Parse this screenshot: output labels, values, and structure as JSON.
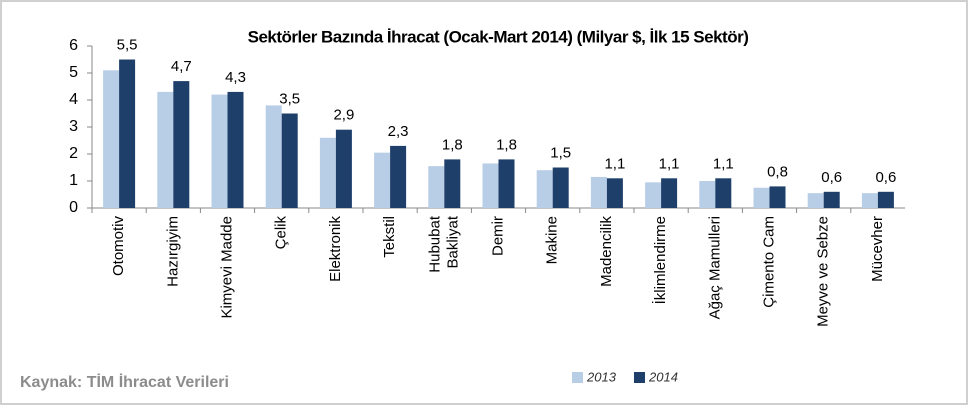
{
  "chart_data": {
    "type": "bar",
    "title": "Sektörler Bazında İhracat (Ocak-Mart 2014) (Milyar $, İlk 15 Sektör)",
    "source": "Kaynak: TİM İhracat Verileri",
    "categories": [
      "Otomotiv",
      "Hazırgiyim",
      "Kimyevi Madde",
      "Çelik",
      "Elektronik",
      "Tekstil",
      "Hububat\nBakliyat",
      "Demir",
      "Makine",
      "Madencilik",
      "İklimlendirme",
      "Ağaç Mamulleri",
      "Çimento Cam",
      "Meyve ve Sebze",
      "Mücevher"
    ],
    "series": [
      {
        "name": "2013",
        "color": "#b8cde6",
        "values": [
          5.1,
          4.3,
          4.2,
          3.8,
          2.6,
          2.05,
          1.55,
          1.65,
          1.4,
          1.15,
          0.95,
          1.0,
          0.75,
          0.55,
          0.55
        ]
      },
      {
        "name": "2014",
        "color": "#1f3f6b",
        "values": [
          5.5,
          4.7,
          4.3,
          3.5,
          2.9,
          2.3,
          1.8,
          1.8,
          1.5,
          1.1,
          1.1,
          1.1,
          0.8,
          0.6,
          0.6
        ],
        "value_labels": [
          "5,5",
          "4,7",
          "4,3",
          "3,5",
          "2,9",
          "2,3",
          "1,8",
          "1,8",
          "1,5",
          "1,1",
          "1,1",
          "1,1",
          "0,8",
          "0,6",
          "0,6"
        ]
      }
    ],
    "ylim": [
      0,
      6
    ],
    "yticks": [
      0,
      1,
      2,
      3,
      4,
      5,
      6
    ],
    "grid": false,
    "legend": "bottom"
  }
}
